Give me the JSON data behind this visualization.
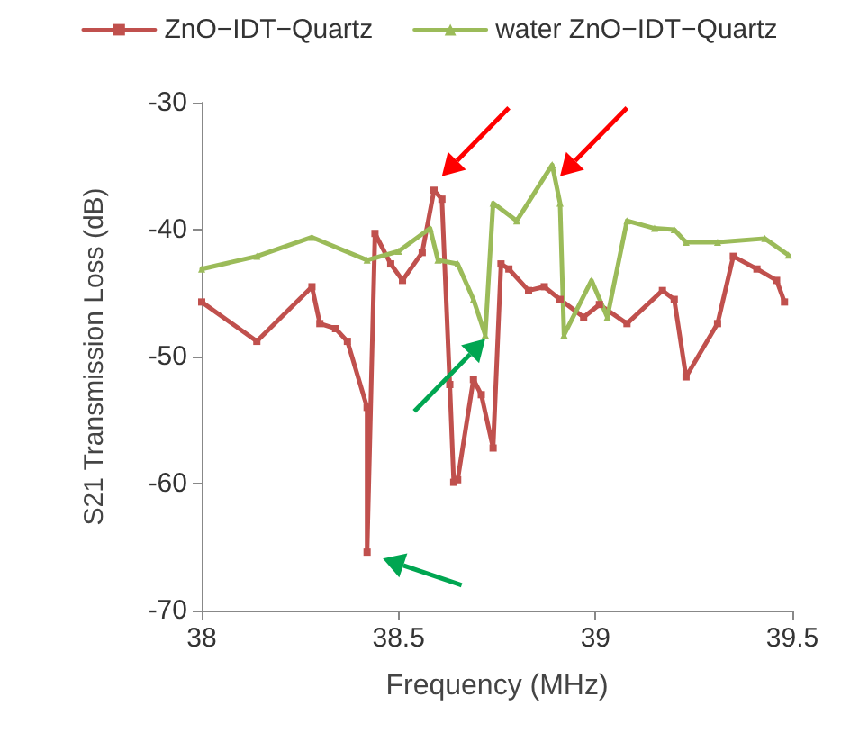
{
  "chart_data": {
    "type": "line",
    "xlabel": "Frequency (MHz)",
    "ylabel": "S21 Transmission Loss (dB)",
    "xlim": [
      38,
      39.5
    ],
    "xticks": [
      38,
      38.5,
      39,
      39.5
    ],
    "ylim": [
      -70,
      -30
    ],
    "yticks": [
      -70,
      -60,
      -50,
      -40,
      -30
    ],
    "grid": false,
    "legend": "top",
    "line_style": "solid",
    "series": [
      {
        "name": "ZnO−IDT−Quartz",
        "color": "#c0504d",
        "marker": "square",
        "x": [
          38.0,
          38.14,
          38.28,
          38.3,
          38.34,
          38.37,
          38.42,
          38.42,
          38.44,
          38.48,
          38.51,
          38.56,
          38.59,
          38.61,
          38.63,
          38.64,
          38.65,
          38.69,
          38.71,
          38.74,
          38.76,
          38.78,
          38.83,
          38.87,
          38.91,
          38.97,
          39.01,
          39.08,
          39.17,
          39.2,
          39.23,
          39.31,
          39.35,
          39.41,
          39.46,
          39.48
        ],
        "values": [
          -45.7,
          -48.8,
          -44.5,
          -47.4,
          -47.8,
          -48.8,
          -54,
          -65.4,
          -40.3,
          -42.7,
          -44,
          -41.8,
          -36.9,
          -37.6,
          -52.2,
          -59.9,
          -59.7,
          -51.8,
          -53,
          -57.2,
          -42.7,
          -43.1,
          -44.8,
          -44.5,
          -45.5,
          -46.9,
          -45.9,
          -47.4,
          -44.8,
          -45.5,
          -51.6,
          -47.4,
          -42.1,
          -43.1,
          -44,
          -45.7
        ]
      },
      {
        "name": "water ZnO−IDT−Quartz",
        "color": "#9bbb59",
        "marker": "triangle",
        "x": [
          38.0,
          38.14,
          38.28,
          38.42,
          38.5,
          38.58,
          38.6,
          38.65,
          38.69,
          38.72,
          38.74,
          38.8,
          38.89,
          38.91,
          38.92,
          38.99,
          39.03,
          39.08,
          39.15,
          39.2,
          39.23,
          39.31,
          39.43,
          39.49
        ],
        "values": [
          -43.1,
          -42.1,
          -40.6,
          -42.4,
          -41.7,
          -39.9,
          -42.4,
          -42.7,
          -45.5,
          -48.3,
          -37.9,
          -39.3,
          -34.9,
          -37.9,
          -48.3,
          -44,
          -46.9,
          -39.3,
          -39.9,
          -40,
          -41,
          -41,
          -40.7,
          -42
        ]
      }
    ]
  }
}
